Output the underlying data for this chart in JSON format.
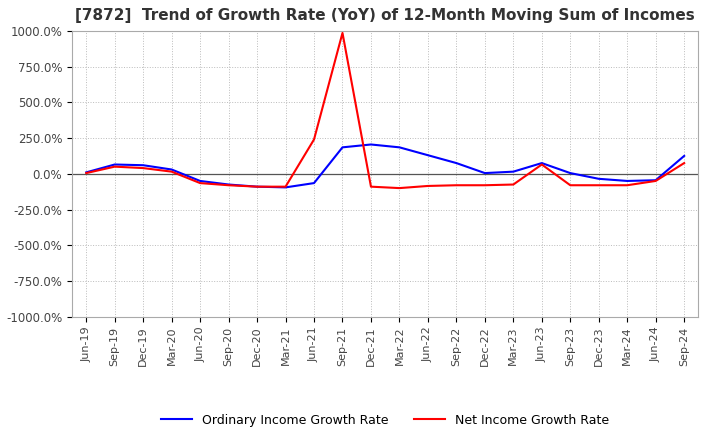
{
  "title": "[7872]  Trend of Growth Rate (YoY) of 12-Month Moving Sum of Incomes",
  "title_fontsize": 11,
  "ylim": [
    -1000,
    1000
  ],
  "yticks": [
    -1000,
    -750,
    -500,
    -250,
    0,
    250,
    500,
    750,
    1000
  ],
  "ytick_labels": [
    "-1000.0%",
    "-750.0%",
    "-500.0%",
    "-250.0%",
    "0.0%",
    "250.0%",
    "500.0%",
    "750.0%",
    "1000.0%"
  ],
  "x_labels": [
    "Jun-19",
    "Sep-19",
    "Dec-19",
    "Mar-20",
    "Jun-20",
    "Sep-20",
    "Dec-20",
    "Mar-21",
    "Jun-21",
    "Sep-21",
    "Dec-21",
    "Mar-22",
    "Jun-22",
    "Sep-22",
    "Dec-22",
    "Mar-23",
    "Jun-23",
    "Sep-23",
    "Dec-23",
    "Mar-24",
    "Jun-24",
    "Sep-24"
  ],
  "ordinary_income": [
    10,
    65,
    60,
    30,
    -50,
    -75,
    -90,
    -95,
    -65,
    185,
    205,
    185,
    130,
    75,
    5,
    15,
    75,
    5,
    -35,
    -50,
    -45,
    125
  ],
  "net_income": [
    5,
    50,
    40,
    15,
    -65,
    -80,
    -90,
    -90,
    240,
    985,
    -90,
    -100,
    -85,
    -80,
    -80,
    -75,
    65,
    -80,
    -80,
    -80,
    -50,
    75
  ],
  "ordinary_color": "#0000ff",
  "net_color": "#ff0000",
  "background_color": "#ffffff",
  "grid_color": "#bbbbbb",
  "legend_ordinary": "Ordinary Income Growth Rate",
  "legend_net": "Net Income Growth Rate",
  "line_width": 1.5
}
